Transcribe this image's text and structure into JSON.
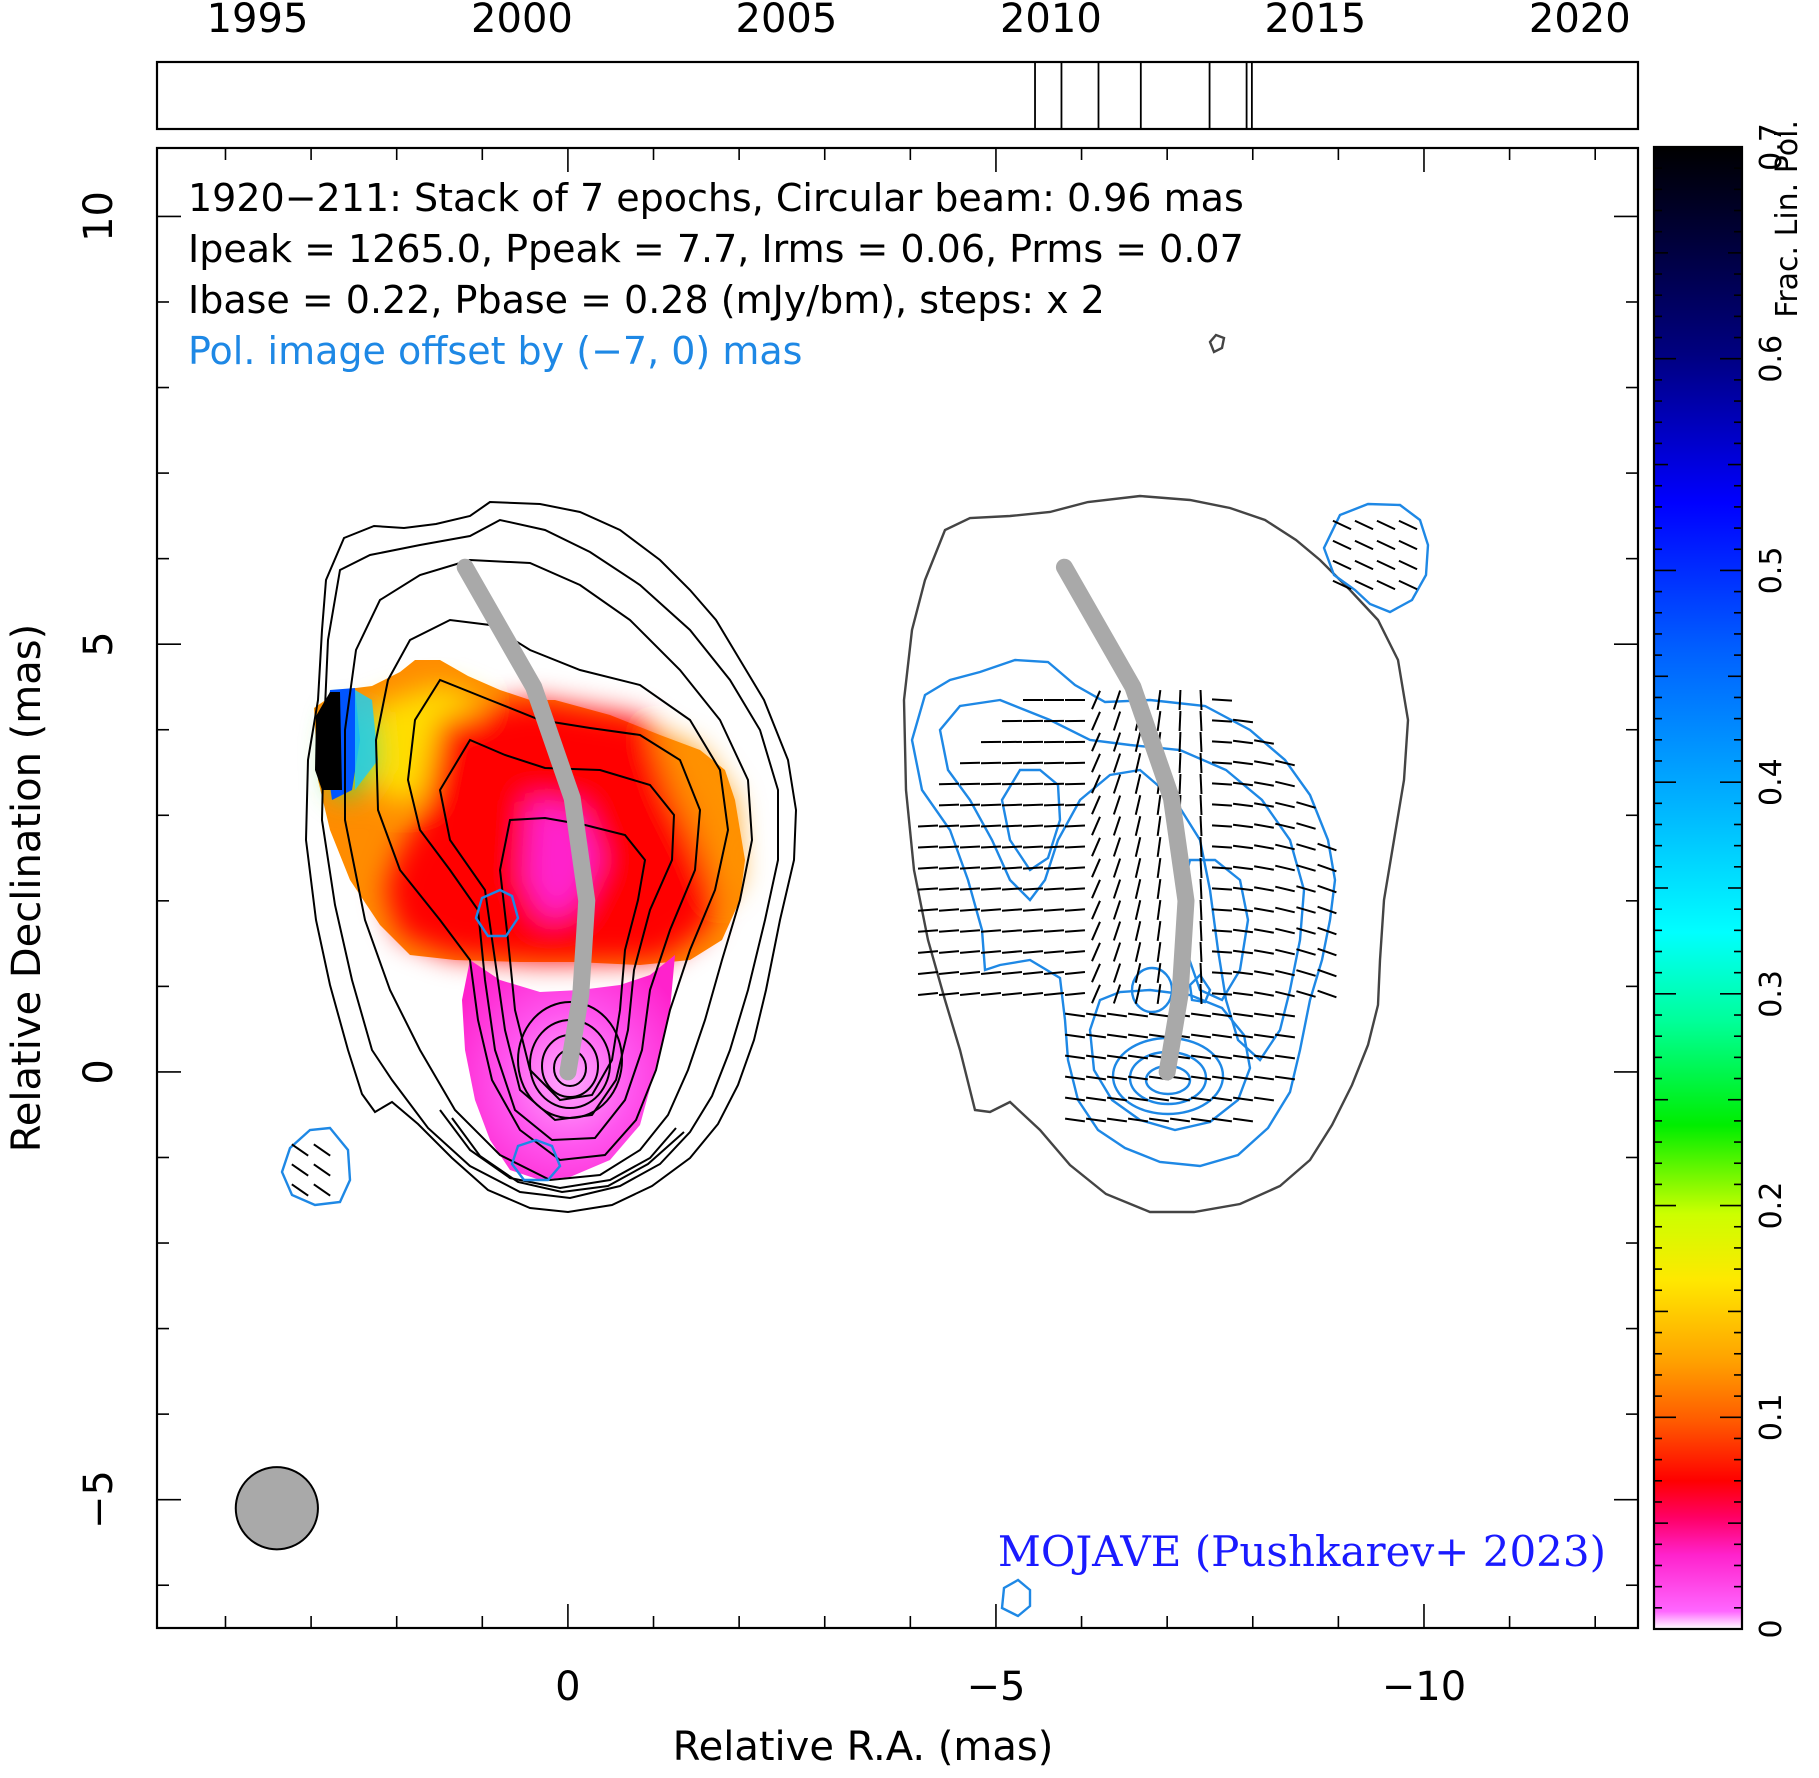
{
  "chart_data": {
    "type": "heatmap",
    "source": "1920-211",
    "annotations": {
      "line1": "1920−211: Stack of 7 epochs, Circular beam: 0.96 mas",
      "line2": "Ipeak = 1265.0, Ppeak = 7.7, Irms = 0.06, Prms = 0.07",
      "line3": "Ibase = 0.22, Pbase = 0.28 (mJy/bm), steps: x 2",
      "line4": "Pol. image offset by (−7, 0) mas",
      "credit": "MOJAVE (Pushkarev+ 2023)"
    },
    "xlabel": "Relative R.A. (mas)",
    "ylabel": "Relative Declination (mas)",
    "xlim": [
      4.8,
      -12.5
    ],
    "ylim": [
      -6.5,
      10.8
    ],
    "x_ticks": [
      "0",
      "−5",
      "−10"
    ],
    "x_tick_values": [
      0,
      -5,
      -10
    ],
    "y_ticks": [
      "−5",
      "0",
      "5",
      "10"
    ],
    "y_tick_values": [
      -5,
      0,
      5,
      10
    ],
    "timeline": {
      "range": [
        1993.1,
        2021.1
      ],
      "tick_labels": [
        "1995",
        "2000",
        "2005",
        "2010",
        "2015",
        "2020"
      ],
      "tick_values": [
        1995,
        2000,
        2005,
        2010,
        2015,
        2020
      ],
      "epochs": [
        2009.7,
        2010.2,
        2010.9,
        2011.7,
        2013.0,
        2013.7,
        2013.8
      ]
    },
    "colorbar": {
      "label": "Frac. Lin. Pol.",
      "range": [
        0,
        0.7
      ],
      "tick_labels": [
        "0",
        "0.1",
        "0.2",
        "0.3",
        "0.4",
        "0.5",
        "0.6",
        "0.7"
      ],
      "tick_values": [
        0,
        0.1,
        0.2,
        0.3,
        0.4,
        0.5,
        0.6,
        0.7
      ]
    },
    "beam_mas": 0.96,
    "beam_center_mas": [
      3.4,
      -5.1
    ],
    "ridge_line_mas": [
      [
        0,
        0
      ],
      [
        -0.15,
        0.9
      ],
      [
        -0.22,
        2.0
      ],
      [
        -0.05,
        3.2
      ],
      [
        0.4,
        4.5
      ],
      [
        1.2,
        5.9
      ]
    ],
    "colors": {
      "stokes_i_contours": "#000000",
      "pol_contours": "#1e88e5",
      "ridge_line": "#a9a9a9",
      "beam": "#a9a9a9",
      "credit_text": "#1a1aff"
    }
  }
}
